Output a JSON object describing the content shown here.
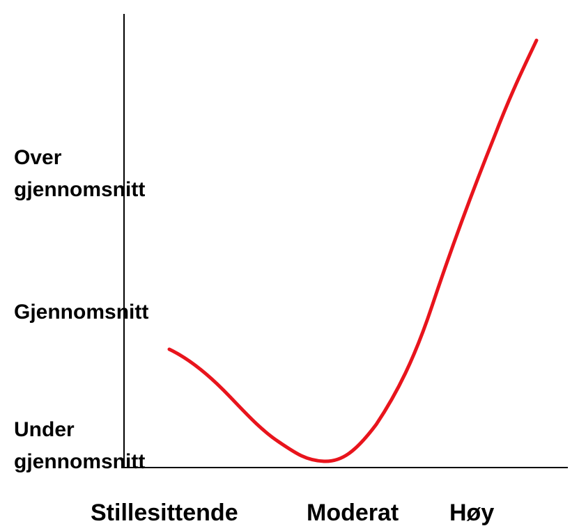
{
  "y_labels": [
    [
      "Over",
      "gjennomsnitt"
    ],
    [
      "Gjennomsnitt"
    ],
    [
      "Under",
      "gjennomsnitt"
    ]
  ],
  "x_labels": [
    "Stillesittende",
    "Moderat",
    "Høy"
  ]
}
